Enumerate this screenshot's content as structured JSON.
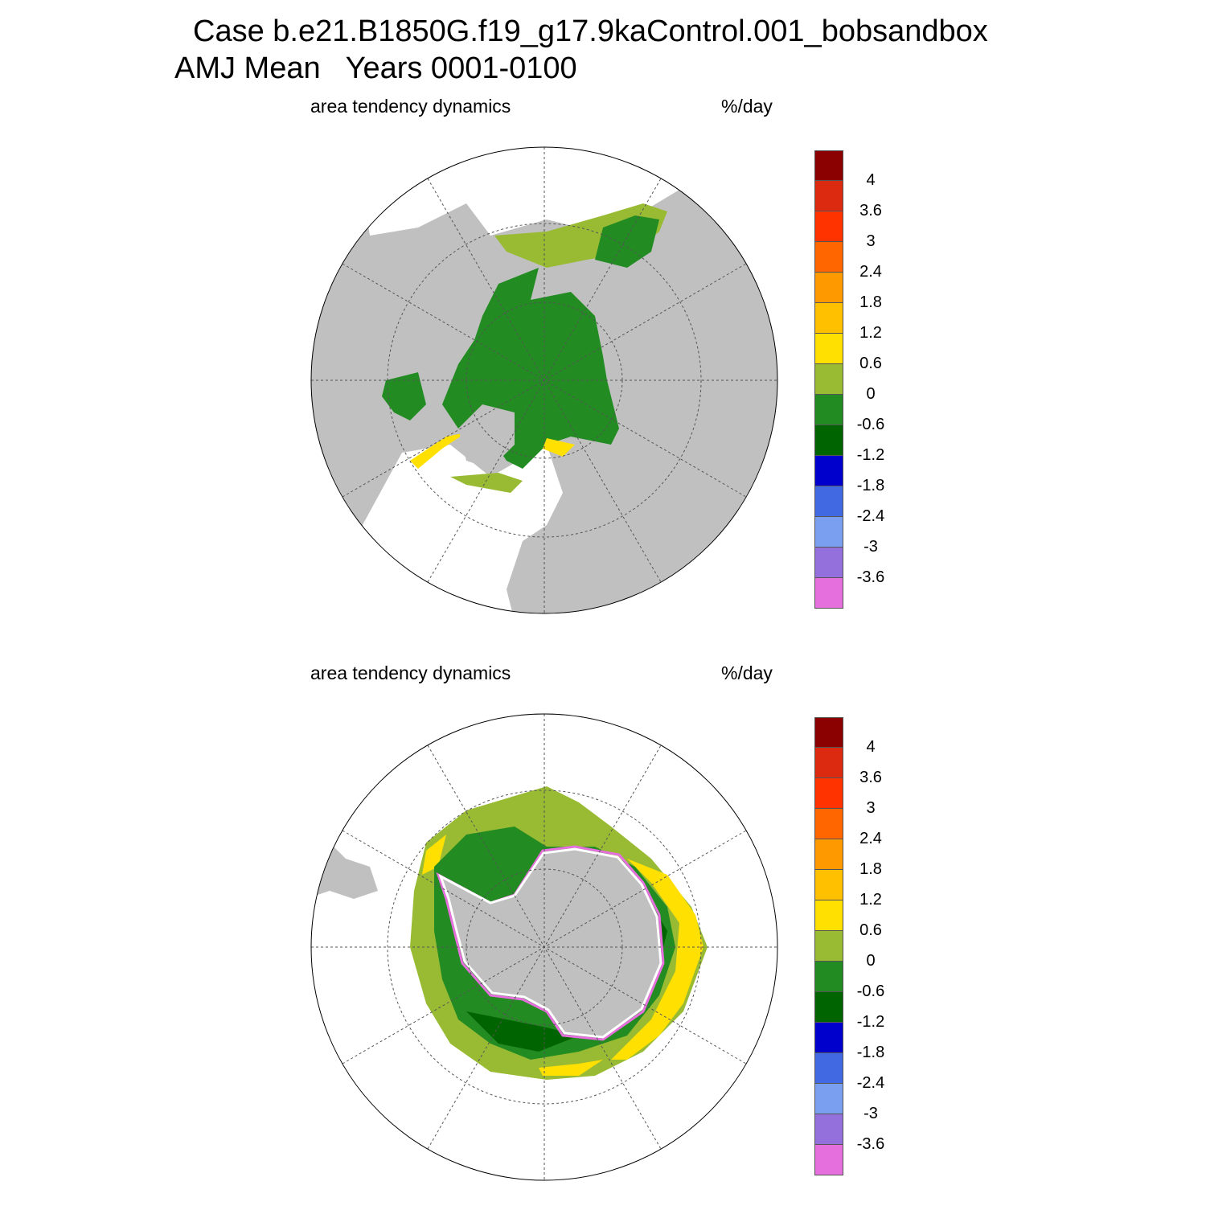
{
  "title": {
    "line1": "Case b.e21.B1850G.f19_g17.9kaControl.001_bobsandbox",
    "line2": "AMJ Mean   Years 0001-0100"
  },
  "panels": [
    {
      "hemisphere": "north",
      "variable_label": "area tendency dynamics",
      "units": "%/day"
    },
    {
      "hemisphere": "south",
      "variable_label": "area tendency dynamics",
      "units": "%/day"
    }
  ],
  "colorbar": {
    "labels": [
      "4",
      "3.6",
      "3",
      "2.4",
      "1.8",
      "1.2",
      "0.6",
      "0",
      "-0.6",
      "-1.2",
      "-1.8",
      "-2.4",
      "-3",
      "-3.6"
    ],
    "colors": [
      "#8b0000",
      "#dc2a10",
      "#ff3300",
      "#ff6600",
      "#ff9900",
      "#ffc000",
      "#ffe000",
      "#99bb33",
      "#228b22",
      "#006400",
      "#0000cd",
      "#4169e1",
      "#7b9ff0",
      "#9370db",
      "#e56fdc"
    ]
  },
  "map_colors": {
    "land": "#c0c0c0",
    "ocean": "#ffffff"
  }
}
